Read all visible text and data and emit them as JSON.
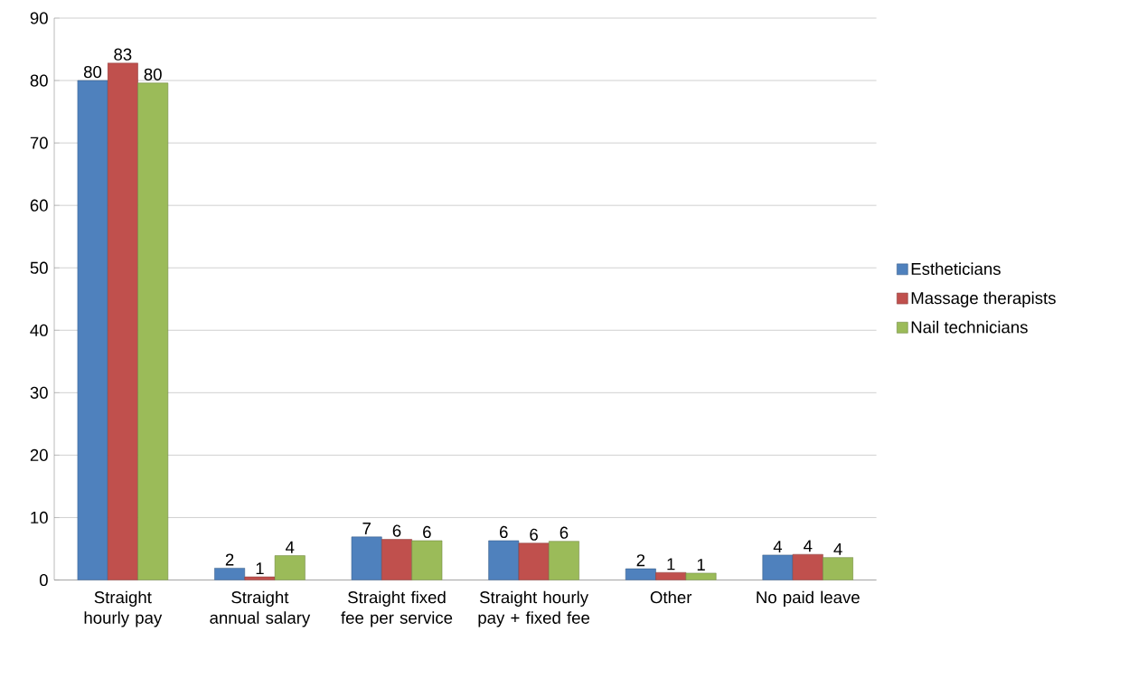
{
  "chart_data": {
    "type": "bar",
    "categories": [
      "Straight hourly pay",
      "Straight annual salary",
      "Straight fixed fee per service",
      "Straight hourly pay + fixed fee",
      "Other",
      "No paid leave"
    ],
    "series": [
      {
        "name": "Estheticians",
        "color": "#4f81bd",
        "values": [
          80,
          1.9,
          6.9,
          6.3,
          1.8,
          4.0
        ],
        "value_labels": [
          "80",
          "2",
          "7",
          "6",
          "2",
          "4"
        ]
      },
      {
        "name": "Massage therapists",
        "color": "#c0504d",
        "values": [
          82.8,
          0.5,
          6.5,
          5.9,
          1.2,
          4.1
        ],
        "value_labels": [
          "83",
          "1",
          "6",
          "6",
          "1",
          "4"
        ]
      },
      {
        "name": "Nail technicians",
        "color": "#9bbb59",
        "values": [
          79.6,
          3.9,
          6.3,
          6.2,
          1.1,
          3.6
        ],
        "value_labels": [
          "80",
          "4",
          "6",
          "6",
          "1",
          "4"
        ]
      }
    ],
    "ylim": [
      0,
      90
    ],
    "yticks": [
      0,
      10,
      20,
      30,
      40,
      50,
      60,
      70,
      80,
      90
    ],
    "grid": "y",
    "legend": "right"
  }
}
